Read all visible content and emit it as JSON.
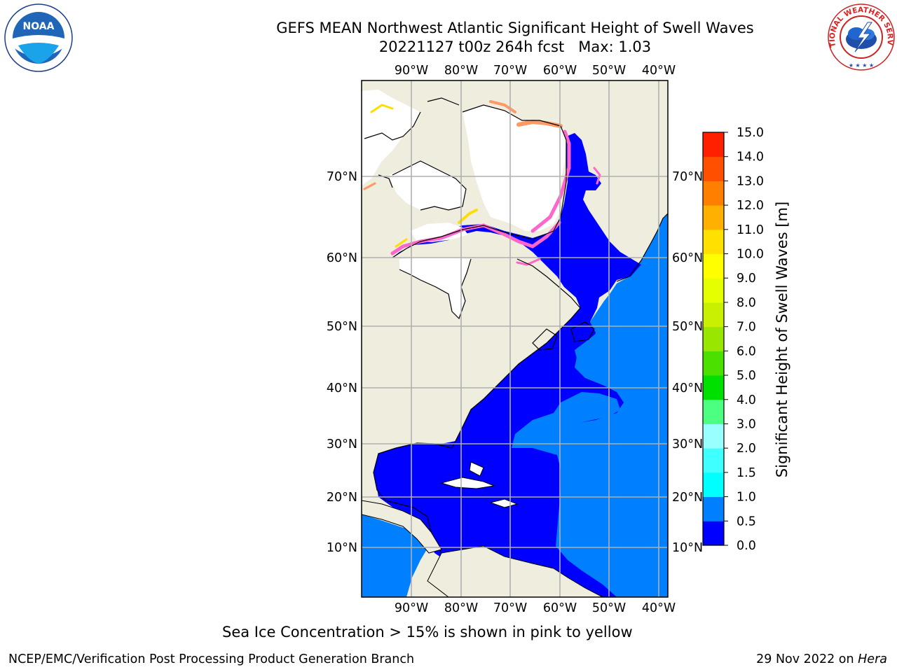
{
  "header": {
    "title_line1": "GEFS MEAN Northwest Atlantic Significant Height of Swell Waves",
    "title_line2": "20221127 t00z 264h fcst   Max: 1.03"
  },
  "logos": {
    "noaa_text": "NOAA",
    "nws_text": "NATIONAL WEATHER SERVICE"
  },
  "map": {
    "lon_labels": [
      "90°W",
      "80°W",
      "70°W",
      "60°W",
      "50°W",
      "40°W"
    ],
    "lat_labels": [
      "70°N",
      "60°N",
      "50°N",
      "40°N",
      "30°N",
      "20°N",
      "10°N"
    ],
    "colors": {
      "land": "#efedde",
      "ocean_low": "#0000ff",
      "ocean_mid": "#0080ff",
      "ice_masked": "#ffffff",
      "ice_edge_pink": "#ff66cc",
      "ice_edge_orange": "#ff9966",
      "ice_edge_yellow": "#ffdd00",
      "grid": "#b0b0b0"
    }
  },
  "colorbar": {
    "label": "Significant Height of Swell Waves [m]",
    "ticks": [
      "0.0",
      "0.5",
      "1.0",
      "1.5",
      "2.0",
      "3.0",
      "4.0",
      "5.0",
      "6.0",
      "7.0",
      "8.0",
      "9.0",
      "10.0",
      "11.0",
      "12.0",
      "13.0",
      "14.0",
      "15.0"
    ],
    "colors": [
      "#0000ff",
      "#0080ff",
      "#00ffff",
      "#3fffff",
      "#99ffff",
      "#4cff80",
      "#00e000",
      "#4ce000",
      "#99e600",
      "#c8f000",
      "#e6ff00",
      "#ffff00",
      "#ffe000",
      "#ffb000",
      "#ff8000",
      "#ff5000",
      "#ff2000",
      "#ff0000"
    ]
  },
  "caption": "Sea Ice Concentration > 15% is shown in pink to yellow",
  "footer": {
    "left": "NCEP/EMC/Verification Post Processing Product Generation Branch",
    "right_prefix": "29 Nov 2022 on ",
    "right_host": "Hera"
  }
}
